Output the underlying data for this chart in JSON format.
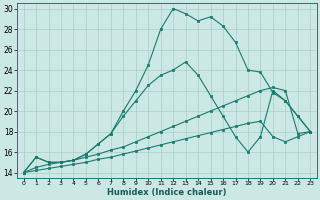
{
  "xlabel": "Humidex (Indice chaleur)",
  "xlim": [
    -0.5,
    23.5
  ],
  "ylim": [
    13.5,
    30.5
  ],
  "xticks": [
    0,
    1,
    2,
    3,
    4,
    5,
    6,
    7,
    8,
    9,
    10,
    11,
    12,
    13,
    14,
    15,
    16,
    17,
    18,
    19,
    20,
    21,
    22,
    23
  ],
  "yticks": [
    14,
    16,
    18,
    20,
    22,
    24,
    26,
    28,
    30
  ],
  "bg_color": "#cce8e5",
  "grid_color": "#aacfcc",
  "line_color": "#1a7a6e",
  "line1_y": [
    14.0,
    15.5,
    15.0,
    15.0,
    15.2,
    15.8,
    16.8,
    17.8,
    20.0,
    22.0,
    24.5,
    28.0,
    30.0,
    29.5,
    28.8,
    29.2,
    28.3,
    26.7,
    24.0,
    23.8,
    21.8,
    21.0,
    19.5,
    18.0
  ],
  "line2_y": [
    14.0,
    15.5,
    15.0,
    15.0,
    15.2,
    15.8,
    16.8,
    17.8,
    19.5,
    21.0,
    22.5,
    23.5,
    24.0,
    24.8,
    23.5,
    21.5,
    19.5,
    17.5,
    16.0,
    17.5,
    22.0,
    21.0,
    19.5,
    18.0
  ],
  "line3_y": [
    14.0,
    14.5,
    14.8,
    15.0,
    15.2,
    15.5,
    15.8,
    16.2,
    16.5,
    17.0,
    17.5,
    18.0,
    18.5,
    19.0,
    19.5,
    20.0,
    20.5,
    21.0,
    21.5,
    22.0,
    22.3,
    22.0,
    17.8,
    18.0
  ],
  "line4_y": [
    14.0,
    14.2,
    14.4,
    14.6,
    14.8,
    15.0,
    15.3,
    15.5,
    15.8,
    16.1,
    16.4,
    16.7,
    17.0,
    17.3,
    17.6,
    17.9,
    18.2,
    18.5,
    18.8,
    19.0,
    17.5,
    17.0,
    17.5,
    18.0
  ]
}
